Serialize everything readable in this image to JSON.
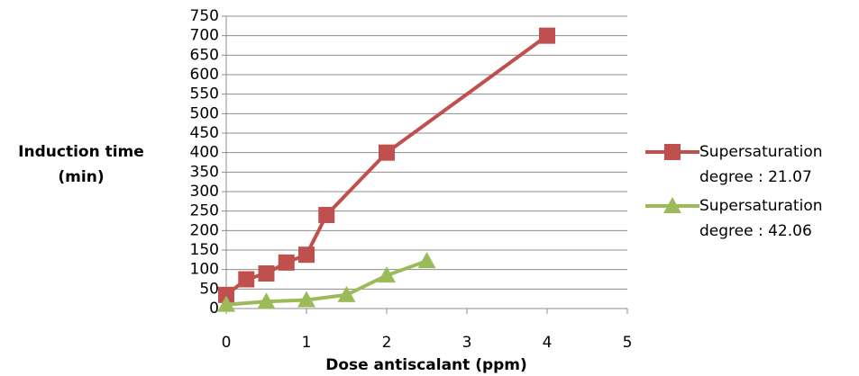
{
  "chart_data": {
    "type": "scatter",
    "xlabel": "Dose antiscalant (ppm)",
    "ylabel": "Induction time (min)",
    "xlim": [
      0,
      5
    ],
    "xticks": [
      0,
      1,
      2,
      3,
      4,
      5
    ],
    "ylim": [
      0,
      750
    ],
    "yticks": [
      0,
      50,
      100,
      150,
      200,
      250,
      300,
      350,
      400,
      450,
      500,
      550,
      600,
      650,
      700,
      750
    ],
    "grid": true,
    "legend": "right",
    "series": [
      {
        "name": "Supersaturation degree : 21.07",
        "color": "#c0504d",
        "marker": "square",
        "x": [
          0,
          0.25,
          0.5,
          0.75,
          1,
          1.25,
          2,
          4
        ],
        "values": [
          35,
          75,
          90,
          118,
          138,
          240,
          400,
          700
        ]
      },
      {
        "name": "Supersaturation degree : 42.06",
        "color": "#9bbb59",
        "marker": "triangle",
        "x": [
          0,
          0.5,
          1,
          1.5,
          2,
          2.5
        ],
        "values": [
          10,
          18,
          22,
          35,
          85,
          122
        ]
      }
    ]
  }
}
